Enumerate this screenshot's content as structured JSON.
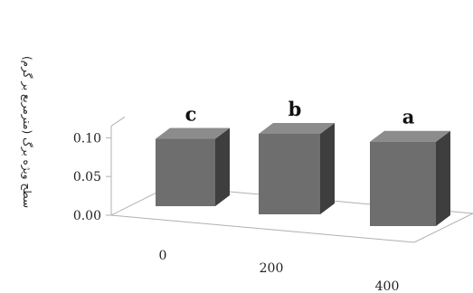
{
  "chart_data": {
    "type": "bar",
    "style": "3d-column",
    "categories": [
      "0",
      "200",
      "400"
    ],
    "values": [
      0.087,
      0.104,
      0.109
    ],
    "significance_letters": [
      "c",
      "b",
      "a"
    ],
    "ylabel": "سطح ویژه برگ (مترمربع بر گرم)",
    "xlabel": "",
    "ylim": [
      0,
      0.12
    ],
    "yticks": [
      "0.00",
      "0.05",
      "0.10"
    ],
    "grid": false,
    "bar_color": "#707070"
  }
}
